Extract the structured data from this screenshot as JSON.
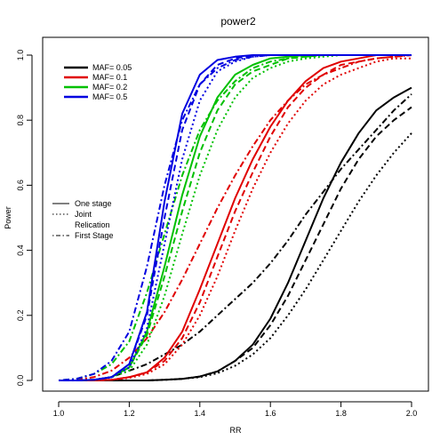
{
  "chart_data": {
    "type": "line",
    "title": "power2",
    "xlabel": "RR",
    "ylabel": "Power",
    "xlim": [
      1.0,
      2.0
    ],
    "ylim": [
      0.0,
      1.0
    ],
    "xticks": [
      "1.0",
      "1.2",
      "1.4",
      "1.6",
      "1.8",
      "2.0"
    ],
    "yticks": [
      "0.0",
      "0.2",
      "0.4",
      "0.6",
      "0.8",
      "1.0"
    ],
    "x": [
      1.0,
      1.05,
      1.1,
      1.15,
      1.2,
      1.25,
      1.3,
      1.35,
      1.4,
      1.45,
      1.5,
      1.55,
      1.6,
      1.65,
      1.7,
      1.75,
      1.8,
      1.85,
      1.9,
      1.95,
      2.0
    ],
    "legend_colors": [
      {
        "label": "MAF= 0.05",
        "color": "#000000"
      },
      {
        "label": "MAF= 0.1",
        "color": "#e00000"
      },
      {
        "label": "MAF= 0.2",
        "color": "#00c000"
      },
      {
        "label": "MAF= 0.5",
        "color": "#0000e0"
      }
    ],
    "legend_styles": [
      {
        "label": "One stage",
        "dash": "solid"
      },
      {
        "label": "Joint",
        "dash": "dotted"
      },
      {
        "label": "Relication",
        "dash": "none"
      },
      {
        "label": "First Stage",
        "dash": "dashdot"
      }
    ],
    "series": [
      {
        "color": "#000000",
        "style": "solid",
        "values": [
          0,
          0,
          0,
          0,
          0,
          0,
          0.002,
          0.005,
          0.012,
          0.028,
          0.06,
          0.11,
          0.19,
          0.3,
          0.43,
          0.56,
          0.67,
          0.76,
          0.83,
          0.87,
          0.9
        ]
      },
      {
        "color": "#000000",
        "style": "dashed",
        "values": [
          0,
          0,
          0,
          0,
          0,
          0,
          0.002,
          0.005,
          0.012,
          0.028,
          0.06,
          0.1,
          0.17,
          0.26,
          0.37,
          0.48,
          0.59,
          0.68,
          0.75,
          0.8,
          0.84
        ]
      },
      {
        "color": "#000000",
        "style": "dotted",
        "values": [
          0,
          0,
          0,
          0,
          0,
          0,
          0.002,
          0.005,
          0.01,
          0.022,
          0.045,
          0.08,
          0.13,
          0.2,
          0.28,
          0.37,
          0.46,
          0.55,
          0.63,
          0.7,
          0.76
        ]
      },
      {
        "color": "#000000",
        "style": "dashdot",
        "values": [
          0,
          0,
          0.002,
          0.01,
          0.03,
          0.05,
          0.08,
          0.11,
          0.15,
          0.2,
          0.25,
          0.3,
          0.36,
          0.43,
          0.51,
          0.58,
          0.65,
          0.71,
          0.77,
          0.83,
          0.88
        ]
      },
      {
        "color": "#e00000",
        "style": "solid",
        "values": [
          0,
          0,
          0,
          0.002,
          0.01,
          0.025,
          0.07,
          0.15,
          0.28,
          0.42,
          0.56,
          0.68,
          0.78,
          0.86,
          0.92,
          0.96,
          0.98,
          0.99,
          1.0,
          1.0,
          1.0
        ]
      },
      {
        "color": "#e00000",
        "style": "dashed",
        "values": [
          0,
          0,
          0,
          0.002,
          0.01,
          0.025,
          0.06,
          0.13,
          0.24,
          0.38,
          0.52,
          0.64,
          0.75,
          0.84,
          0.9,
          0.94,
          0.97,
          0.98,
          0.99,
          0.995,
          1.0
        ]
      },
      {
        "color": "#e00000",
        "style": "dotted",
        "values": [
          0,
          0,
          0,
          0.002,
          0.008,
          0.02,
          0.05,
          0.11,
          0.2,
          0.32,
          0.46,
          0.59,
          0.7,
          0.79,
          0.86,
          0.91,
          0.94,
          0.96,
          0.98,
          0.99,
          0.99
        ]
      },
      {
        "color": "#e00000",
        "style": "dashdot",
        "values": [
          0,
          0.002,
          0.01,
          0.03,
          0.07,
          0.13,
          0.21,
          0.31,
          0.42,
          0.53,
          0.63,
          0.72,
          0.8,
          0.86,
          0.91,
          0.94,
          0.96,
          0.98,
          0.99,
          0.995,
          1.0
        ]
      },
      {
        "color": "#00c000",
        "style": "solid",
        "values": [
          0,
          0,
          0.002,
          0.01,
          0.04,
          0.15,
          0.35,
          0.57,
          0.75,
          0.87,
          0.94,
          0.97,
          0.99,
          0.995,
          1.0,
          1.0,
          1.0,
          1.0,
          1.0,
          1.0,
          1.0
        ]
      },
      {
        "color": "#00c000",
        "style": "dashed",
        "values": [
          0,
          0,
          0.002,
          0.01,
          0.04,
          0.14,
          0.32,
          0.52,
          0.7,
          0.83,
          0.91,
          0.95,
          0.97,
          0.99,
          0.995,
          1.0,
          1.0,
          1.0,
          1.0,
          1.0,
          1.0
        ]
      },
      {
        "color": "#00c000",
        "style": "dotted",
        "values": [
          0,
          0,
          0.002,
          0.01,
          0.03,
          0.11,
          0.26,
          0.45,
          0.63,
          0.77,
          0.87,
          0.93,
          0.96,
          0.98,
          0.99,
          0.995,
          1.0,
          1.0,
          1.0,
          1.0,
          1.0
        ]
      },
      {
        "color": "#00c000",
        "style": "dashdot",
        "values": [
          0,
          0.005,
          0.02,
          0.05,
          0.12,
          0.27,
          0.45,
          0.63,
          0.77,
          0.86,
          0.92,
          0.96,
          0.98,
          0.99,
          0.995,
          1.0,
          1.0,
          1.0,
          1.0,
          1.0,
          1.0
        ]
      },
      {
        "color": "#0000e0",
        "style": "solid",
        "values": [
          0,
          0,
          0.002,
          0.01,
          0.05,
          0.21,
          0.55,
          0.82,
          0.94,
          0.985,
          0.995,
          1.0,
          1.0,
          1.0,
          1.0,
          1.0,
          1.0,
          1.0,
          1.0,
          1.0,
          1.0
        ]
      },
      {
        "color": "#0000e0",
        "style": "dashed",
        "values": [
          0,
          0,
          0.002,
          0.01,
          0.05,
          0.2,
          0.5,
          0.77,
          0.91,
          0.97,
          0.99,
          1.0,
          1.0,
          1.0,
          1.0,
          1.0,
          1.0,
          1.0,
          1.0,
          1.0,
          1.0
        ]
      },
      {
        "color": "#0000e0",
        "style": "dotted",
        "values": [
          0,
          0,
          0.002,
          0.01,
          0.04,
          0.16,
          0.42,
          0.68,
          0.86,
          0.95,
          0.98,
          0.995,
          1.0,
          1.0,
          1.0,
          1.0,
          1.0,
          1.0,
          1.0,
          1.0,
          1.0
        ]
      },
      {
        "color": "#0000e0",
        "style": "dashdot",
        "values": [
          0,
          0.005,
          0.02,
          0.06,
          0.15,
          0.35,
          0.6,
          0.8,
          0.91,
          0.96,
          0.985,
          0.995,
          1.0,
          1.0,
          1.0,
          1.0,
          1.0,
          1.0,
          1.0,
          1.0,
          1.0
        ]
      }
    ]
  }
}
